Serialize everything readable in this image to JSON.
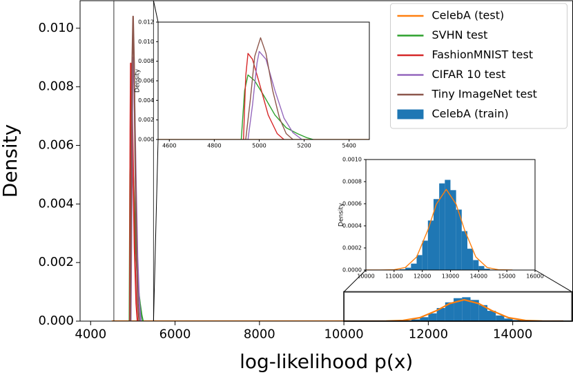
{
  "chart_data": [
    {
      "type": "line",
      "xlabel": "log-likelihood p(x)",
      "ylabel": "Density",
      "xlim": [
        3750,
        15420
      ],
      "ylim": [
        0,
        0.01094
      ],
      "xticks": [
        4000,
        6000,
        8000,
        10000,
        12000,
        14000
      ],
      "yticks": [
        {
          "value": 0,
          "label": "0.000"
        },
        {
          "value": 0.002,
          "label": "0.002"
        },
        {
          "value": 0.004,
          "label": "0.004"
        },
        {
          "value": 0.006,
          "label": "0.006"
        },
        {
          "value": 0.008,
          "label": "0.008"
        },
        {
          "value": 0.01,
          "label": "0.010"
        }
      ],
      "legend": "upper right",
      "series": [
        {
          "name": "CelebA (test)",
          "color": "#ff7f0e",
          "x": [
            4500,
            10500,
            11000,
            11400,
            11800,
            12200,
            12500,
            12850,
            13200,
            13500,
            13900,
            14300,
            14700,
            15200
          ],
          "values": [
            0,
            0,
            3e-06,
            2.3e-05,
            0.000118,
            0.000363,
            0.000596,
            0.00073,
            0.000596,
            0.000363,
            0.000118,
            2.3e-05,
            3e-06,
            0
          ]
        },
        {
          "name": "SVHN test",
          "color": "#2ca02c",
          "x": [
            4920,
            4935,
            4950,
            4980,
            5020,
            5070,
            5120,
            5170,
            5210,
            5240
          ],
          "values": [
            0,
            0.005,
            0.0066,
            0.006,
            0.0045,
            0.0025,
            0.0012,
            0.0006,
            0.0002,
            0
          ]
        },
        {
          "name": "FashionMNIST test",
          "color": "#d62728",
          "x": [
            4930,
            4940,
            4950,
            4970,
            5000,
            5040,
            5080,
            5110
          ],
          "values": [
            0,
            0.0065,
            0.0088,
            0.0082,
            0.0058,
            0.0025,
            0.0006,
            0
          ]
        },
        {
          "name": "CIFAR 10 test",
          "color": "#9467bd",
          "x": [
            4950,
            4970,
            4990,
            5000,
            5030,
            5070,
            5110,
            5150,
            5190
          ],
          "values": [
            0,
            0.0035,
            0.0078,
            0.009,
            0.0082,
            0.005,
            0.0022,
            0.0007,
            0
          ]
        },
        {
          "name": "Tiny ImageNet test",
          "color": "#8c564b",
          "x": [
            4940,
            4960,
            4980,
            5006,
            5030,
            5060,
            5090,
            5120,
            5150
          ],
          "values": [
            0,
            0.004,
            0.0085,
            0.0104,
            0.0088,
            0.005,
            0.0022,
            0.0006,
            0
          ]
        },
        {
          "name": "CelebA (train)",
          "type": "histogram",
          "color": "#1f77b4",
          "bins": [
            11200,
            11400,
            11600,
            11800,
            12000,
            12200,
            12400,
            12600,
            12800,
            13000,
            13200,
            13400,
            13600,
            13800,
            14000,
            14200,
            14400,
            14600
          ],
          "values": [
            7e-06,
            2.1e-05,
            5.8e-05,
            0.000135,
            0.000266,
            0.000448,
            0.000642,
            0.000784,
            0.000816,
            0.000723,
            0.000547,
            0.000352,
            0.000193,
            9e-05,
            3.6e-05,
            1.2e-05,
            4e-06
          ]
        }
      ]
    },
    {
      "type": "line",
      "ylabel": "Density",
      "xlim": [
        4550,
        5490
      ],
      "ylim": [
        0,
        0.012
      ],
      "xticks": [
        4600,
        4800,
        5000,
        5200,
        5400
      ],
      "yticks": [
        {
          "value": 0,
          "label": "0.000"
        },
        {
          "value": 0.002,
          "label": "0.002"
        },
        {
          "value": 0.004,
          "label": "0.004"
        },
        {
          "value": 0.006,
          "label": "0.006"
        },
        {
          "value": 0.008,
          "label": "0.008"
        },
        {
          "value": 0.01,
          "label": "0.010"
        },
        {
          "value": 0.012,
          "label": "0.012"
        }
      ]
    },
    {
      "type": "line",
      "ylabel": "Density",
      "xlim": [
        10000,
        16000
      ],
      "ylim": [
        0,
        0.001
      ],
      "xticks": [
        10000,
        11000,
        12000,
        13000,
        14000,
        15000,
        16000
      ],
      "yticks": [
        {
          "value": 0,
          "label": "0.0000"
        },
        {
          "value": 0.0002,
          "label": "0.0002"
        },
        {
          "value": 0.0004,
          "label": "0.0004"
        },
        {
          "value": 0.0006,
          "label": "0.0006"
        },
        {
          "value": 0.0008,
          "label": "0.0008"
        },
        {
          "value": 0.001,
          "label": "0.0010"
        }
      ]
    }
  ]
}
